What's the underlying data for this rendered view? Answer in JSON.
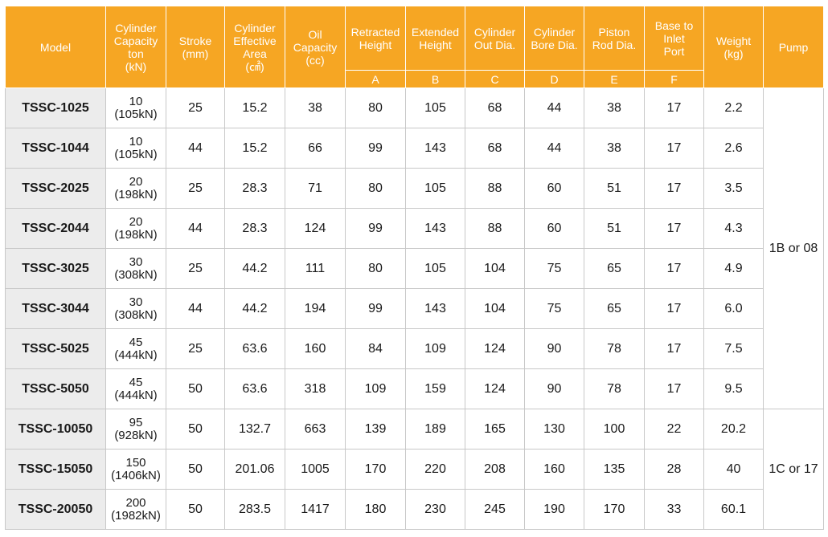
{
  "headers": {
    "model": "Model",
    "capacity": [
      "Cylinder",
      "Capacity",
      "ton",
      "(kN)"
    ],
    "stroke": [
      "Stroke",
      "(mm)"
    ],
    "area": [
      "Cylinder",
      "Effective",
      "Area",
      "(㎠)"
    ],
    "oil": [
      "Oil",
      "Capacity",
      "(cc)"
    ],
    "retracted": [
      "Retracted",
      "Height"
    ],
    "extended": [
      "Extended",
      "Height"
    ],
    "out_dia": [
      "Cylinder",
      "Out Dia."
    ],
    "bore_dia": [
      "Cylinder",
      "Bore Dia."
    ],
    "rod_dia": [
      "Piston",
      "Rod Dia."
    ],
    "base_inlet": [
      "Base to",
      "Inlet",
      "Port"
    ],
    "weight": [
      "Weight",
      "(kg)"
    ],
    "pump": "Pump",
    "letters": [
      "A",
      "B",
      "C",
      "D",
      "E",
      "F"
    ]
  },
  "rows": [
    {
      "model": "TSSC-1025",
      "ton": "10",
      "kn": "(105kN)",
      "stroke": "25",
      "area": "15.2",
      "oil": "38",
      "a": "80",
      "b": "105",
      "c": "68",
      "d": "44",
      "e": "38",
      "f": "17",
      "weight": "2.2"
    },
    {
      "model": "TSSC-1044",
      "ton": "10",
      "kn": "(105kN)",
      "stroke": "44",
      "area": "15.2",
      "oil": "66",
      "a": "99",
      "b": "143",
      "c": "68",
      "d": "44",
      "e": "38",
      "f": "17",
      "weight": "2.6"
    },
    {
      "model": "TSSC-2025",
      "ton": "20",
      "kn": "(198kN)",
      "stroke": "25",
      "area": "28.3",
      "oil": "71",
      "a": "80",
      "b": "105",
      "c": "88",
      "d": "60",
      "e": "51",
      "f": "17",
      "weight": "3.5"
    },
    {
      "model": "TSSC-2044",
      "ton": "20",
      "kn": "(198kN)",
      "stroke": "44",
      "area": "28.3",
      "oil": "124",
      "a": "99",
      "b": "143",
      "c": "88",
      "d": "60",
      "e": "51",
      "f": "17",
      "weight": "4.3"
    },
    {
      "model": "TSSC-3025",
      "ton": "30",
      "kn": "(308kN)",
      "stroke": "25",
      "area": "44.2",
      "oil": "111",
      "a": "80",
      "b": "105",
      "c": "104",
      "d": "75",
      "e": "65",
      "f": "17",
      "weight": "4.9"
    },
    {
      "model": "TSSC-3044",
      "ton": "30",
      "kn": "(308kN)",
      "stroke": "44",
      "area": "44.2",
      "oil": "194",
      "a": "99",
      "b": "143",
      "c": "104",
      "d": "75",
      "e": "65",
      "f": "17",
      "weight": "6.0"
    },
    {
      "model": "TSSC-5025",
      "ton": "45",
      "kn": "(444kN)",
      "stroke": "25",
      "area": "63.6",
      "oil": "160",
      "a": "84",
      "b": "109",
      "c": "124",
      "d": "90",
      "e": "78",
      "f": "17",
      "weight": "7.5"
    },
    {
      "model": "TSSC-5050",
      "ton": "45",
      "kn": "(444kN)",
      "stroke": "50",
      "area": "63.6",
      "oil": "318",
      "a": "109",
      "b": "159",
      "c": "124",
      "d": "90",
      "e": "78",
      "f": "17",
      "weight": "9.5"
    },
    {
      "model": "TSSC-10050",
      "ton": "95",
      "kn": "(928kN)",
      "stroke": "50",
      "area": "132.7",
      "oil": "663",
      "a": "139",
      "b": "189",
      "c": "165",
      "d": "130",
      "e": "100",
      "f": "22",
      "weight": "20.2"
    },
    {
      "model": "TSSC-15050",
      "ton": "150",
      "kn": "(1406kN)",
      "stroke": "50",
      "area": "201.06",
      "oil": "1005",
      "a": "170",
      "b": "220",
      "c": "208",
      "d": "160",
      "e": "135",
      "f": "28",
      "weight": "40"
    },
    {
      "model": "TSSC-20050",
      "ton": "200",
      "kn": "(1982kN)",
      "stroke": "50",
      "area": "283.5",
      "oil": "1417",
      "a": "180",
      "b": "230",
      "c": "245",
      "d": "190",
      "e": "170",
      "f": "33",
      "weight": "60.1"
    }
  ],
  "pump_groups": [
    {
      "label": "1B or 08",
      "rows": 8
    },
    {
      "label": "1C or 17",
      "rows": 3
    }
  ],
  "colors": {
    "header_bg": "#f6a623",
    "model_cell_bg": "#ececec",
    "border": "#c8c8c8"
  }
}
